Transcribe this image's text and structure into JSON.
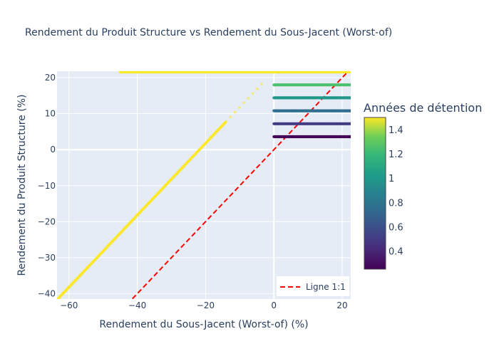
{
  "chart_data": {
    "type": "scatter",
    "title": "Rendement du Produit Structure vs Rendement du Sous-Jacent (Worst-of)",
    "xlabel": "Rendement du Sous-Jacent (Worst-of) (%)",
    "ylabel": "Rendement du Produit Structure (%)",
    "xlim": [
      -63.5,
      22.5
    ],
    "ylim": [
      -41.5,
      21.8
    ],
    "xticks": [
      -60,
      -40,
      -20,
      0,
      20
    ],
    "xtick_labels": [
      "−60",
      "−40",
      "−20",
      "0",
      "20"
    ],
    "yticks": [
      -40,
      -30,
      -20,
      -10,
      0,
      10,
      20
    ],
    "ytick_labels": [
      "−40",
      "−30",
      "−20",
      "−10",
      "0",
      "10",
      "20"
    ],
    "grid": true,
    "legend": {
      "position": "bottom-right",
      "entries": [
        {
          "label": "Ligne 1:1",
          "style": "dashed",
          "color": "#ff0000"
        }
      ]
    },
    "reference_line": {
      "name": "Ligne 1:1",
      "points": [
        [
          -43,
          -43
        ],
        [
          22.5,
          22.5
        ]
      ],
      "color": "#ff0000"
    },
    "colorbar": {
      "title": "Années de détention",
      "range": [
        0.25,
        1.5
      ],
      "ticks": [
        0.4,
        0.6,
        0.8,
        1,
        1.2,
        1.4
      ],
      "tick_labels": [
        "0.4",
        "0.6",
        "0.8",
        "1",
        "1.2",
        "1.4"
      ],
      "colorscale": "Viridis"
    },
    "series": [
      {
        "holding_years": 1.5,
        "kind": "diagonal",
        "x_range": [
          -63.5,
          -14
        ],
        "y_offset": 21.8
      },
      {
        "holding_years": 1.5,
        "kind": "diagonal-sparse",
        "x_range": [
          -14,
          -3
        ],
        "y_offset": 21.8
      },
      {
        "holding_years": 1.5,
        "kind": "flat",
        "x_range": [
          -45,
          22.5
        ],
        "y": 21.6
      },
      {
        "holding_years": 1.25,
        "kind": "flat",
        "x_range": [
          0,
          22.5
        ],
        "y": 18.0
      },
      {
        "holding_years": 1.0,
        "kind": "flat",
        "x_range": [
          0,
          22.5
        ],
        "y": 14.4
      },
      {
        "holding_years": 0.75,
        "kind": "flat",
        "x_range": [
          0,
          22.5
        ],
        "y": 10.8
      },
      {
        "holding_years": 0.5,
        "kind": "flat",
        "x_range": [
          0,
          22.5
        ],
        "y": 7.2
      },
      {
        "holding_years": 0.25,
        "kind": "flat",
        "x_range": [
          0,
          22.5
        ],
        "y": 3.6
      }
    ]
  }
}
